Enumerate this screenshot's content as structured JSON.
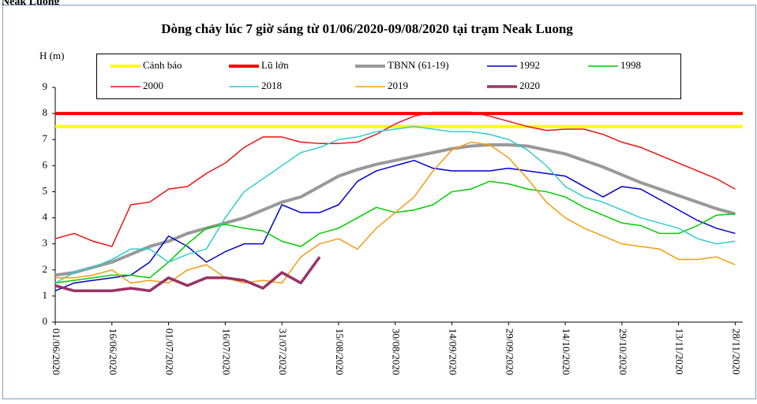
{
  "header": "Neak Luong",
  "chart_data": {
    "type": "line",
    "title": "Dòng chảy lúc 7 giờ sáng từ 01/06/2020-09/08/2020 tại trạm Neak Luong",
    "ylabel": "H (m)",
    "xlim": [
      0,
      182
    ],
    "ylim": [
      0,
      9
    ],
    "yticks": [
      0,
      1,
      2,
      3,
      4,
      5,
      6,
      7,
      8,
      9
    ],
    "xticks": [
      {
        "value": 0,
        "label": "01/06/2020"
      },
      {
        "value": 15,
        "label": "16/06/2020"
      },
      {
        "value": 30,
        "label": "01/07/2020"
      },
      {
        "value": 45,
        "label": "16/07/2020"
      },
      {
        "value": 60,
        "label": "31/07/2020"
      },
      {
        "value": 75,
        "label": "15/08/2020"
      },
      {
        "value": 90,
        "label": "30/08/2020"
      },
      {
        "value": 105,
        "label": "14/09/2020"
      },
      {
        "value": 120,
        "label": "29/09/2020"
      },
      {
        "value": 135,
        "label": "14/10/2020"
      },
      {
        "value": 150,
        "label": "29/10/2020"
      },
      {
        "value": 165,
        "label": "13/11/2020"
      },
      {
        "value": 180,
        "label": "28/11/2020"
      }
    ],
    "x": [
      0,
      5,
      10,
      15,
      20,
      25,
      30,
      35,
      40,
      45,
      50,
      55,
      60,
      65,
      70,
      75,
      80,
      85,
      90,
      95,
      100,
      105,
      110,
      115,
      120,
      125,
      130,
      135,
      140,
      145,
      150,
      155,
      160,
      165,
      170,
      175,
      180
    ],
    "levels": [
      {
        "name": "Cảnh báo",
        "color": "#ffff00",
        "width": 4,
        "value": 7.5
      },
      {
        "name": "Lũ lớn",
        "color": "#ff0000",
        "width": 4,
        "value": 8
      }
    ],
    "series": [
      {
        "name": "TBNN (61-19)",
        "color": "#999999",
        "width": 4,
        "values": [
          1.8,
          1.9,
          2.1,
          2.3,
          2.6,
          2.9,
          3.1,
          3.4,
          3.6,
          3.8,
          4.0,
          4.3,
          4.6,
          4.8,
          5.2,
          5.6,
          5.85,
          6.05,
          6.2,
          6.35,
          6.5,
          6.65,
          6.75,
          6.8,
          6.8,
          6.75,
          6.6,
          6.45,
          6.2,
          5.95,
          5.65,
          5.35,
          5.1,
          4.85,
          4.6,
          4.35,
          4.15
        ]
      },
      {
        "name": "1992",
        "color": "#0000cc",
        "width": 1.5,
        "values": [
          1.2,
          1.5,
          1.6,
          1.7,
          1.8,
          2.3,
          3.3,
          2.9,
          2.3,
          2.7,
          3.0,
          3.0,
          4.5,
          4.2,
          4.2,
          4.5,
          5.4,
          5.8,
          6.0,
          6.2,
          5.9,
          5.8,
          5.8,
          5.8,
          5.9,
          5.8,
          5.7,
          5.6,
          5.2,
          4.8,
          5.2,
          5.1,
          4.7,
          4.3,
          3.9,
          3.6,
          3.4
        ]
      },
      {
        "name": "1998",
        "color": "#00cc00",
        "width": 1.5,
        "values": [
          1.5,
          1.6,
          1.7,
          1.8,
          1.8,
          1.7,
          2.3,
          3.0,
          3.6,
          3.75,
          3.6,
          3.5,
          3.1,
          2.9,
          3.4,
          3.6,
          4.0,
          4.4,
          4.2,
          4.3,
          4.5,
          5.0,
          5.1,
          5.4,
          5.3,
          5.1,
          5.0,
          4.8,
          4.4,
          4.1,
          3.8,
          3.7,
          3.4,
          3.4,
          3.7,
          4.1,
          4.15
        ]
      },
      {
        "name": "2000",
        "color": "#ee1111",
        "width": 1.5,
        "values": [
          3.2,
          3.4,
          3.1,
          2.9,
          4.5,
          4.6,
          5.1,
          5.2,
          5.7,
          6.1,
          6.7,
          7.1,
          7.1,
          6.9,
          6.85,
          6.85,
          6.9,
          7.2,
          7.6,
          7.9,
          8.05,
          8.05,
          8.05,
          7.9,
          7.7,
          7.5,
          7.35,
          7.4,
          7.4,
          7.2,
          6.9,
          6.7,
          6.4,
          6.1,
          5.8,
          5.5,
          5.1
        ]
      },
      {
        "name": "2018",
        "color": "#33cccc",
        "width": 1.5,
        "values": [
          1.5,
          1.9,
          2.1,
          2.4,
          2.8,
          2.8,
          2.3,
          2.6,
          2.8,
          4.0,
          5.0,
          5.5,
          6.0,
          6.5,
          6.7,
          7.0,
          7.1,
          7.3,
          7.4,
          7.5,
          7.4,
          7.3,
          7.3,
          7.2,
          7.0,
          6.6,
          6.0,
          5.2,
          4.8,
          4.6,
          4.3,
          4.0,
          3.8,
          3.6,
          3.2,
          3.0,
          3.1
        ]
      },
      {
        "name": "2019",
        "color": "#f39c12",
        "width": 1.5,
        "values": [
          1.7,
          1.7,
          1.8,
          2.0,
          1.5,
          1.6,
          1.5,
          2.0,
          2.2,
          1.7,
          1.5,
          1.6,
          1.5,
          2.5,
          3.0,
          3.2,
          2.8,
          3.6,
          4.2,
          4.8,
          5.8,
          6.6,
          6.9,
          6.8,
          6.3,
          5.5,
          4.6,
          4.0,
          3.6,
          3.3,
          3.0,
          2.9,
          2.8,
          2.4,
          2.4,
          2.5,
          2.2
        ]
      },
      {
        "name": "2020",
        "color": "#993366",
        "width": 3.5,
        "values": [
          1.4,
          1.2,
          1.2,
          1.2,
          1.3,
          1.2,
          1.7,
          1.4,
          1.7,
          1.7,
          1.6,
          1.3,
          1.9,
          1.5,
          2.5,
          null,
          null,
          null,
          null,
          null,
          null,
          null,
          null,
          null,
          null,
          null,
          null,
          null,
          null,
          null,
          null,
          null,
          null,
          null,
          null,
          null,
          null
        ]
      }
    ]
  }
}
